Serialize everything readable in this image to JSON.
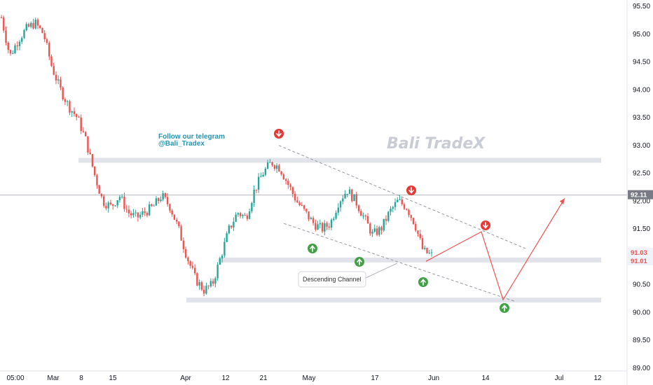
{
  "chart_data": {
    "type": "candlestick",
    "y_range": [
      89.0,
      95.5
    ],
    "y_ticks": [
      "95.50",
      "95.00",
      "94.50",
      "94.00",
      "93.50",
      "93.00",
      "92.50",
      "92.00",
      "91.50",
      "91.00",
      "90.50",
      "90.00",
      "89.50",
      "89.00"
    ],
    "x_ticks": [
      "05:00",
      "Mar",
      "8",
      "15",
      "Apr",
      "12",
      "21",
      "May",
      "17",
      "Jun",
      "14",
      "Jul",
      "12"
    ],
    "watermark": "Bali TradeX",
    "annotation_lines": [
      "Follow our telegram",
      "@Bali_Tradex"
    ],
    "callout": "Descending Channel",
    "price_labels": [
      {
        "text": "92.11",
        "color": "#787b86",
        "text_color": "#131722"
      },
      {
        "text": "91.03",
        "color": "#f0f3fa",
        "text_color": "#ef5350"
      },
      {
        "text": "91.01",
        "color": "#f0f3fa",
        "text_color": "#ef5350"
      }
    ],
    "horizontal_line": 92.11,
    "zones": [
      92.74,
      90.95,
      90.23
    ],
    "colors": {
      "up": "#26a69a",
      "down": "#ef5350",
      "zone": "#e1e3eb",
      "arrow_up": "#43a047",
      "arrow_down": "#e53935",
      "projection": "#ef5350"
    },
    "candles_close_approx": [
      95.3,
      94.6,
      94.9,
      95.1,
      95.2,
      95.0,
      94.4,
      94.0,
      93.7,
      93.5,
      93.1,
      92.5,
      92.0,
      91.9,
      92.1,
      91.8,
      91.7,
      91.8,
      91.9,
      92.1,
      91.9,
      91.5,
      91.0,
      90.6,
      90.4,
      90.5,
      91.0,
      91.5,
      91.8,
      91.7,
      92.2,
      92.5,
      92.7,
      92.6,
      92.3,
      92.0,
      91.8,
      91.6,
      91.5,
      91.6,
      92.0,
      92.2,
      92.0,
      91.7,
      91.4,
      91.5,
      91.8,
      92.0,
      91.9,
      91.6,
      91.1,
      91.03
    ]
  }
}
